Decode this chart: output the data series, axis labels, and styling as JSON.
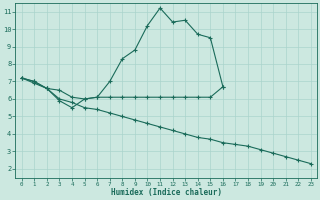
{
  "xlabel": "Humidex (Indice chaleur)",
  "bg_color": "#cce8e0",
  "line_color": "#1a6b5a",
  "grid_color": "#aad4cc",
  "xlim": [
    -0.5,
    23.5
  ],
  "ylim": [
    1.5,
    11.5
  ],
  "xticks": [
    0,
    1,
    2,
    3,
    4,
    5,
    6,
    7,
    8,
    9,
    10,
    11,
    12,
    13,
    14,
    15,
    16,
    17,
    18,
    19,
    20,
    21,
    22,
    23
  ],
  "yticks": [
    2,
    3,
    4,
    5,
    6,
    7,
    8,
    9,
    10,
    11
  ],
  "line1_x": [
    0,
    1,
    2,
    3,
    4,
    5,
    6,
    7,
    8,
    9,
    10,
    11,
    12,
    13,
    14,
    15,
    16,
    17,
    18,
    19,
    20,
    21,
    22
  ],
  "line1_y": [
    7.2,
    7.0,
    6.6,
    5.9,
    5.5,
    6.0,
    6.1,
    7.0,
    8.3,
    8.8,
    10.2,
    11.2,
    10.4,
    10.5,
    9.7,
    9.5,
    6.7,
    null,
    null,
    null,
    null,
    null,
    null
  ],
  "line2_x": [
    0,
    1,
    2,
    3,
    4,
    5,
    6,
    7,
    8,
    9,
    10,
    11,
    12,
    13,
    14,
    15,
    16,
    17,
    18,
    19,
    20,
    21,
    22
  ],
  "line2_y": [
    7.2,
    7.0,
    6.6,
    6.5,
    6.1,
    6.0,
    6.1,
    6.1,
    6.1,
    6.1,
    6.1,
    6.1,
    6.1,
    6.1,
    6.1,
    6.1,
    6.7,
    null,
    null,
    null,
    null,
    null,
    null
  ],
  "line3_x": [
    0,
    1,
    2,
    3,
    4,
    5,
    6,
    7,
    8,
    9,
    10,
    11,
    12,
    13,
    14,
    15,
    16,
    17,
    18,
    19,
    20,
    21,
    22,
    23
  ],
  "line3_y": [
    7.2,
    6.9,
    6.6,
    6.0,
    5.8,
    5.5,
    5.4,
    5.2,
    5.0,
    4.8,
    4.6,
    4.4,
    4.2,
    4.0,
    3.8,
    3.7,
    3.5,
    3.4,
    3.3,
    3.1,
    2.9,
    2.7,
    2.5,
    2.3
  ]
}
